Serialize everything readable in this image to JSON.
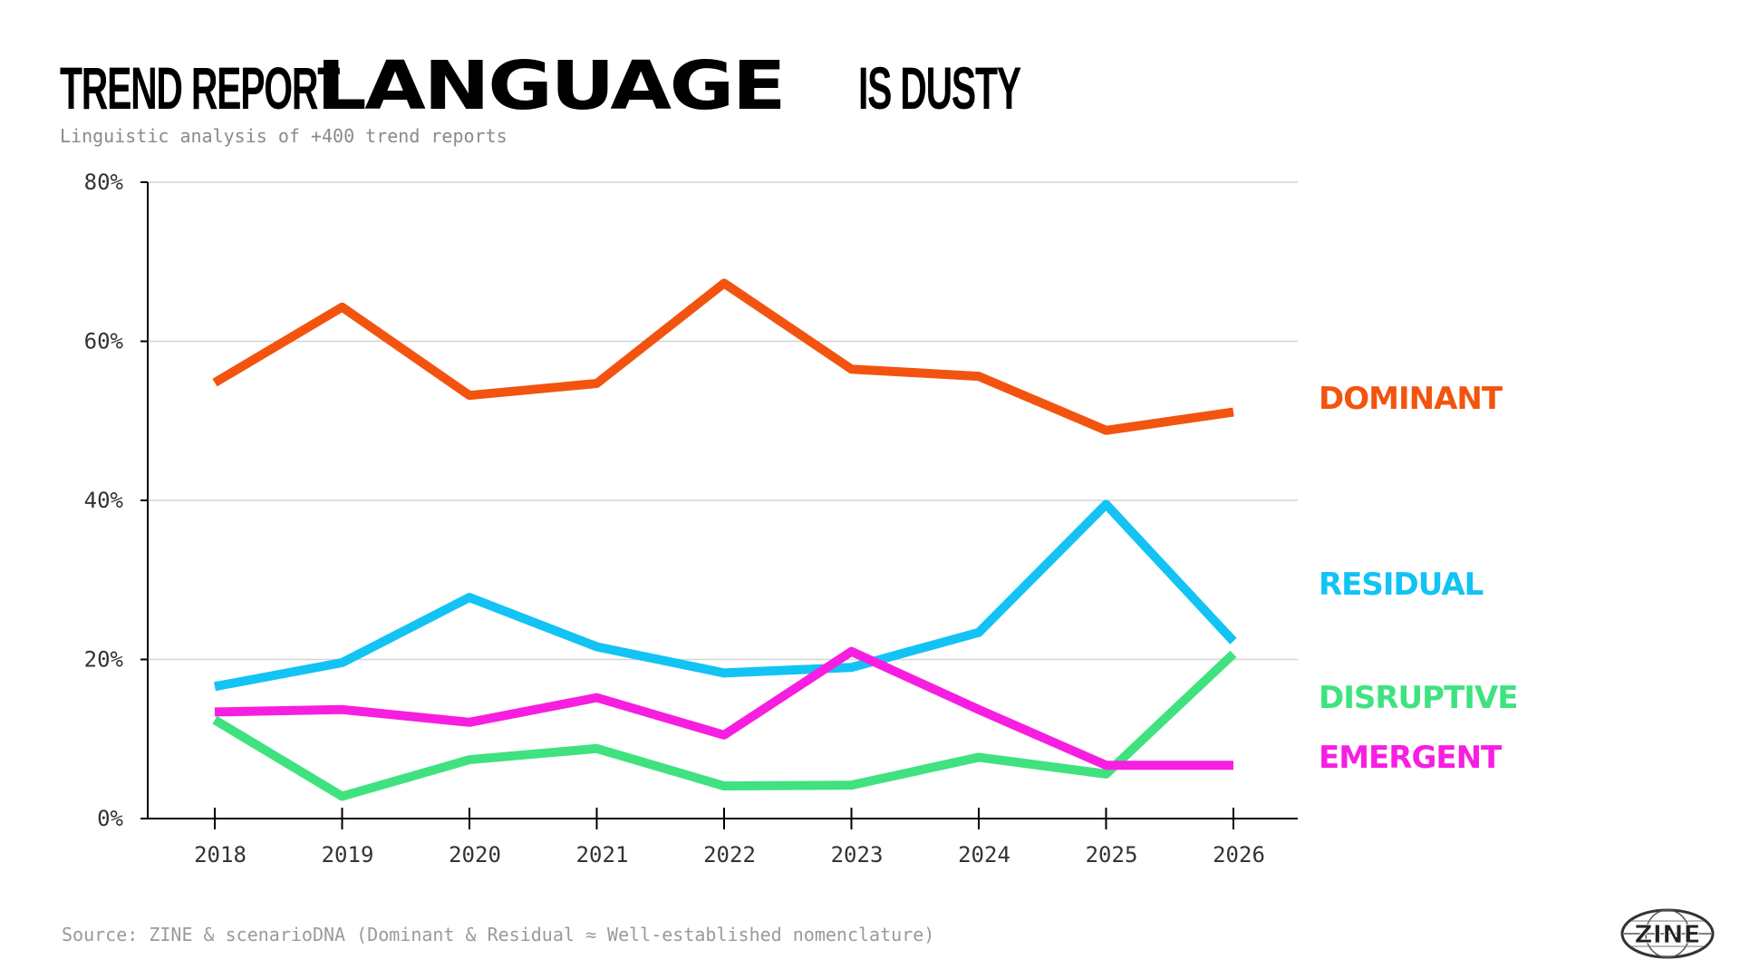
{
  "title": {
    "part1": "TREND REPORT",
    "part2": "LANGUAGE",
    "part3": "IS DUSTY"
  },
  "subtitle": "Linguistic analysis of +400 trend reports",
  "source": "Source: ZINE & scenarioDNA (Dominant & Residual ≈ Well-established nomenclature)",
  "logo_text": "ZINE",
  "chart_data": {
    "type": "line",
    "x": [
      "2018",
      "2019",
      "2020",
      "2021",
      "2022",
      "2023",
      "2024",
      "2025",
      "2026"
    ],
    "ylim": [
      0,
      80
    ],
    "yticks": [
      0,
      20,
      40,
      60,
      80
    ],
    "ytick_labels": [
      "0%",
      "20%",
      "40%",
      "60%",
      "80%"
    ],
    "grid": true,
    "legend": "right, inline labels",
    "series": [
      {
        "name": "DOMINANT",
        "color": "#f25410",
        "values": [
          54.8,
          64.3,
          53.2,
          54.7,
          67.3,
          56.5,
          55.6,
          48.8,
          51.1
        ]
      },
      {
        "name": "RESIDUAL",
        "color": "#12c3f4",
        "values": [
          16.6,
          19.6,
          27.8,
          21.6,
          18.3,
          19.0,
          23.4,
          39.5,
          22.3
        ]
      },
      {
        "name": "DISRUPTIVE",
        "color": "#3fe27f",
        "values": [
          12.4,
          2.8,
          7.4,
          8.8,
          4.1,
          4.2,
          7.7,
          5.6,
          20.7
        ]
      },
      {
        "name": "EMERGENT",
        "color": "#f71ee1",
        "values": [
          13.4,
          13.7,
          12.1,
          15.2,
          10.5,
          21.0,
          13.7,
          6.7,
          6.7
        ]
      }
    ]
  }
}
